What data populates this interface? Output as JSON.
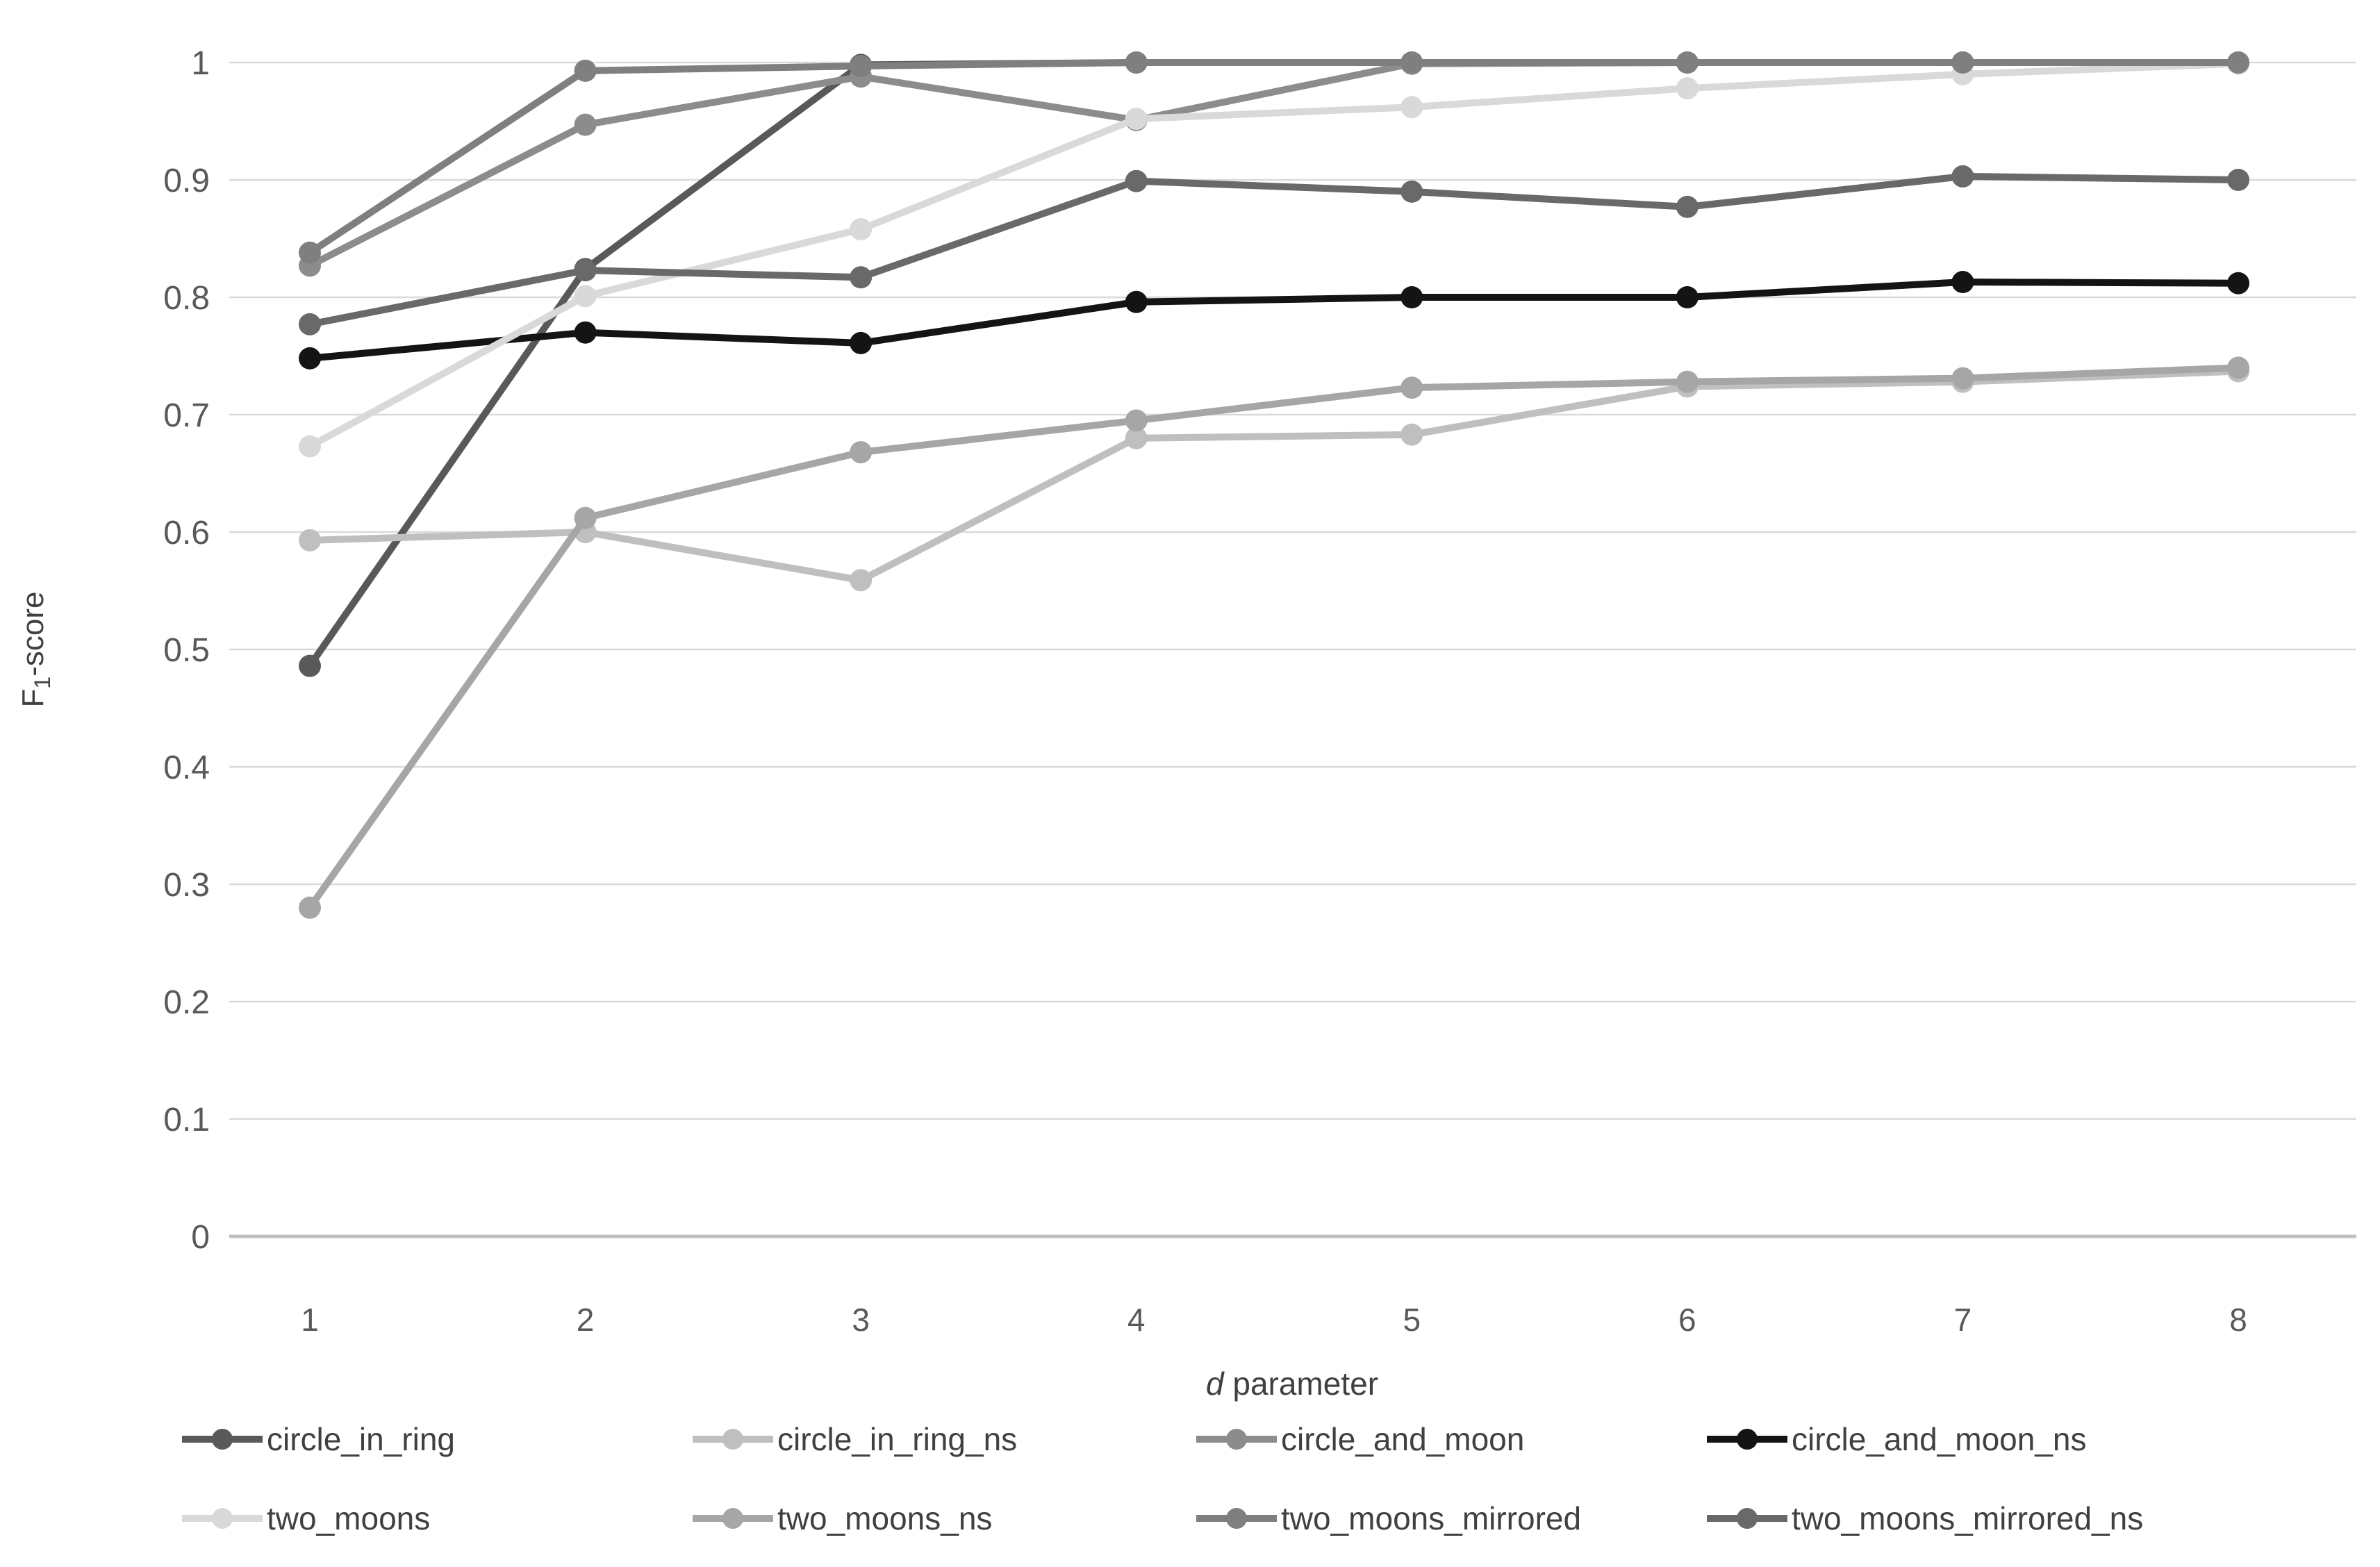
{
  "chart_data": {
    "type": "line",
    "title": "",
    "xlabel": "d parameter",
    "ylabel": "F1-score",
    "x": [
      1,
      2,
      3,
      4,
      5,
      6,
      7,
      8
    ],
    "ylim": [
      0,
      1
    ],
    "yticks": [
      0,
      0.1,
      0.2,
      0.3,
      0.4,
      0.5,
      0.6,
      0.7,
      0.8,
      0.9,
      1
    ],
    "xticks": [
      "1",
      "2",
      "3",
      "4",
      "5",
      "6",
      "7",
      "8"
    ],
    "grid": true,
    "legend_position": "bottom",
    "colors": {
      "gridline": "#d9d9d9",
      "axis_line": "#c0c0c0",
      "tick_text": "#595959",
      "legend_text": "#404040"
    },
    "series": [
      {
        "name": "circle_in_ring",
        "color": "#595959",
        "values": [
          0.486,
          0.824,
          0.998,
          1.0,
          1.0,
          1.0,
          1.0,
          1.0
        ]
      },
      {
        "name": "circle_in_ring_ns",
        "color": "#bfbfbf",
        "values": [
          0.593,
          0.6,
          0.559,
          0.68,
          0.683,
          0.724,
          0.728,
          0.737
        ]
      },
      {
        "name": "circle_and_moon",
        "color": "#8c8c8c",
        "values": [
          0.827,
          0.947,
          0.988,
          0.951,
          0.999,
          1.0,
          1.0,
          1.0
        ]
      },
      {
        "name": "circle_and_moon_ns",
        "color": "#141414",
        "values": [
          0.748,
          0.77,
          0.761,
          0.796,
          0.8,
          0.8,
          0.813,
          0.812
        ]
      },
      {
        "name": "two_moons",
        "color": "#d9d9d9",
        "values": [
          0.673,
          0.801,
          0.858,
          0.952,
          0.962,
          0.978,
          0.99,
          0.999
        ]
      },
      {
        "name": "two_moons_ns",
        "color": "#a6a6a6",
        "values": [
          0.28,
          0.612,
          0.668,
          0.695,
          0.723,
          0.728,
          0.731,
          0.74
        ]
      },
      {
        "name": "two_moons_mirrored",
        "color": "#7f7f7f",
        "values": [
          0.838,
          0.993,
          0.997,
          1.0,
          1.0,
          1.0,
          1.0,
          1.0
        ]
      },
      {
        "name": "two_moons_mirrored_ns",
        "color": "#696969",
        "values": [
          0.777,
          0.823,
          0.817,
          0.899,
          0.89,
          0.877,
          0.903,
          0.9
        ]
      }
    ]
  }
}
